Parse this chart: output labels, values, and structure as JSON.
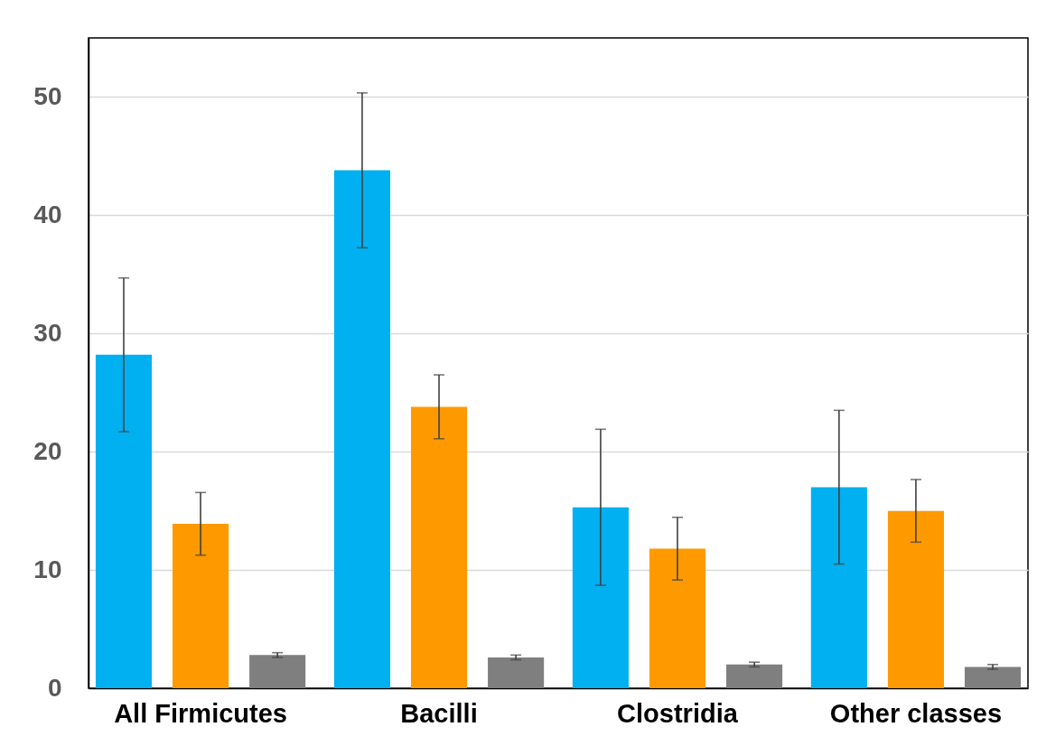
{
  "chart_data": {
    "type": "bar",
    "categories": [
      "All Firmicutes",
      "Bacilli",
      "Clostridia",
      "Other classes"
    ],
    "series": [
      {
        "color": "#00b0f0",
        "values": [
          28.2,
          43.8,
          15.3,
          17.0
        ],
        "errors": [
          6.5,
          6.55,
          6.6,
          6.5
        ]
      },
      {
        "color": "#ff9900",
        "values": [
          13.9,
          23.8,
          11.8,
          15.0
        ],
        "errors": [
          2.65,
          2.7,
          2.65,
          2.65
        ]
      },
      {
        "color": "#7f7f7f",
        "values": [
          2.8,
          2.6,
          2.0,
          1.8
        ],
        "errors": [
          0.2,
          0.2,
          0.2,
          0.2
        ]
      }
    ],
    "ylim": [
      0,
      55
    ],
    "yticks": [
      0,
      10,
      20,
      30,
      40,
      50
    ],
    "grid": "y"
  }
}
